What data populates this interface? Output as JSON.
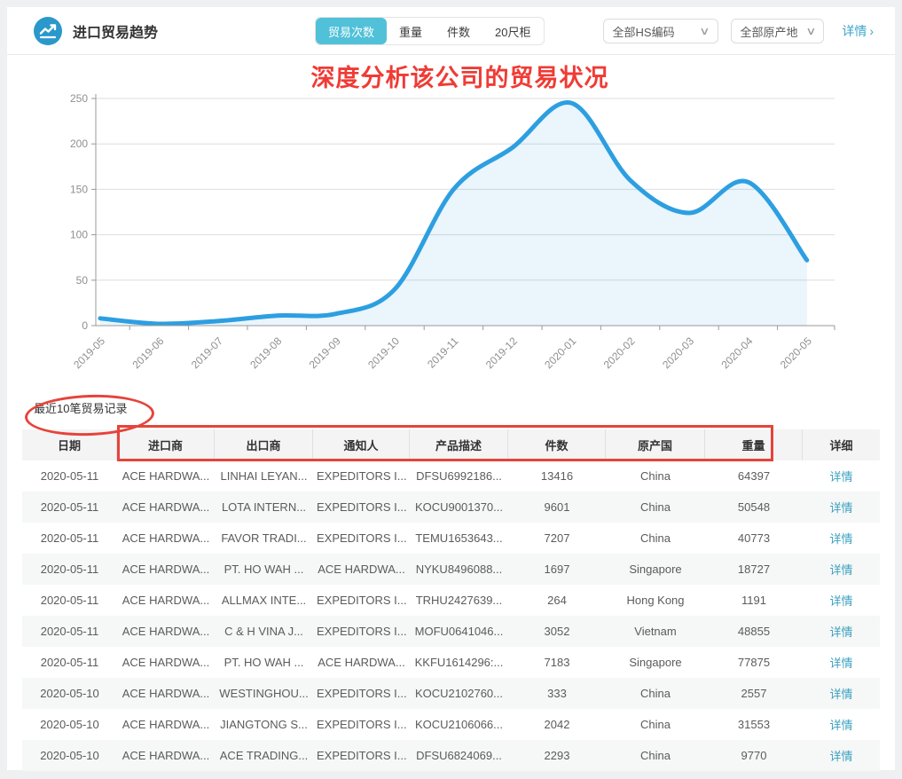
{
  "header": {
    "title": "进口贸易趋势",
    "tabs": [
      {
        "label": "贸易次数",
        "active": true
      },
      {
        "label": "重量",
        "active": false
      },
      {
        "label": "件数",
        "active": false
      },
      {
        "label": "20尺柜",
        "active": false
      }
    ],
    "filters": {
      "hs_code": "全部HS编码",
      "origin": "全部原产地"
    },
    "detail_link": "详情"
  },
  "icons": {
    "chevron_down": "∨",
    "chevron_right": "›",
    "trend_icon": "trend-line-in-circle"
  },
  "annotation": {
    "chart_title": "深度分析该公司的贸易状况",
    "red_color": "#e6433a"
  },
  "chart_data": {
    "type": "area",
    "title": "",
    "x": [
      "2019-05",
      "2019-06",
      "2019-07",
      "2019-08",
      "2019-09",
      "2019-10",
      "2019-11",
      "2019-12",
      "2020-01",
      "2020-02",
      "2020-03",
      "2020-04",
      "2020-05"
    ],
    "series": [
      {
        "name": "贸易次数",
        "values": [
          8,
          2,
          5,
          11,
          13,
          40,
          150,
          196,
          245,
          160,
          124,
          158,
          72
        ]
      }
    ],
    "ylim": [
      0,
      250
    ],
    "ytick_step": 50,
    "grid": true,
    "legend_position": "none",
    "line_color": "#2d9fe1",
    "fill_color": "rgba(45,159,225,0.10)",
    "axis_color": "#999999",
    "grid_color": "#dddddd",
    "tick_label_color": "#8f8f8f"
  },
  "table": {
    "caption": "最近10笔贸易记录",
    "columns": [
      "日期",
      "进口商",
      "出口商",
      "通知人",
      "产品描述",
      "件数",
      "原产国",
      "重量",
      "详细"
    ],
    "detail_label": "详情",
    "rows": [
      [
        "2020-05-11",
        "ACE HARDWA...",
        "LINHAI LEYAN...",
        "EXPEDITORS I...",
        "DFSU6992186...",
        "13416",
        "China",
        "64397"
      ],
      [
        "2020-05-11",
        "ACE HARDWA...",
        "LOTA INTERN...",
        "EXPEDITORS I...",
        "KOCU9001370...",
        "9601",
        "China",
        "50548"
      ],
      [
        "2020-05-11",
        "ACE HARDWA...",
        "FAVOR TRADI...",
        "EXPEDITORS I...",
        "TEMU1653643...",
        "7207",
        "China",
        "40773"
      ],
      [
        "2020-05-11",
        "ACE HARDWA...",
        "PT. HO WAH ...",
        "ACE HARDWA...",
        "NYKU8496088...",
        "1697",
        "Singapore",
        "18727"
      ],
      [
        "2020-05-11",
        "ACE HARDWA...",
        "ALLMAX INTE...",
        "EXPEDITORS I...",
        "TRHU2427639...",
        "264",
        "Hong Kong",
        "1191"
      ],
      [
        "2020-05-11",
        "ACE HARDWA...",
        "C & H VINA J...",
        "EXPEDITORS I...",
        "MOFU0641046...",
        "3052",
        "Vietnam",
        "48855"
      ],
      [
        "2020-05-11",
        "ACE HARDWA...",
        "PT. HO WAH ...",
        "ACE HARDWA...",
        "KKFU1614296:...",
        "7183",
        "Singapore",
        "77875"
      ],
      [
        "2020-05-10",
        "ACE HARDWA...",
        "WESTINGHOU...",
        "EXPEDITORS I...",
        "KOCU2102760...",
        "333",
        "China",
        "2557"
      ],
      [
        "2020-05-10",
        "ACE HARDWA...",
        "JIANGTONG S...",
        "EXPEDITORS I...",
        "KOCU2106066...",
        "2042",
        "China",
        "31553"
      ],
      [
        "2020-05-10",
        "ACE HARDWA...",
        "ACE TRADING...",
        "EXPEDITORS I...",
        "DFSU6824069...",
        "2293",
        "China",
        "9770"
      ]
    ]
  }
}
